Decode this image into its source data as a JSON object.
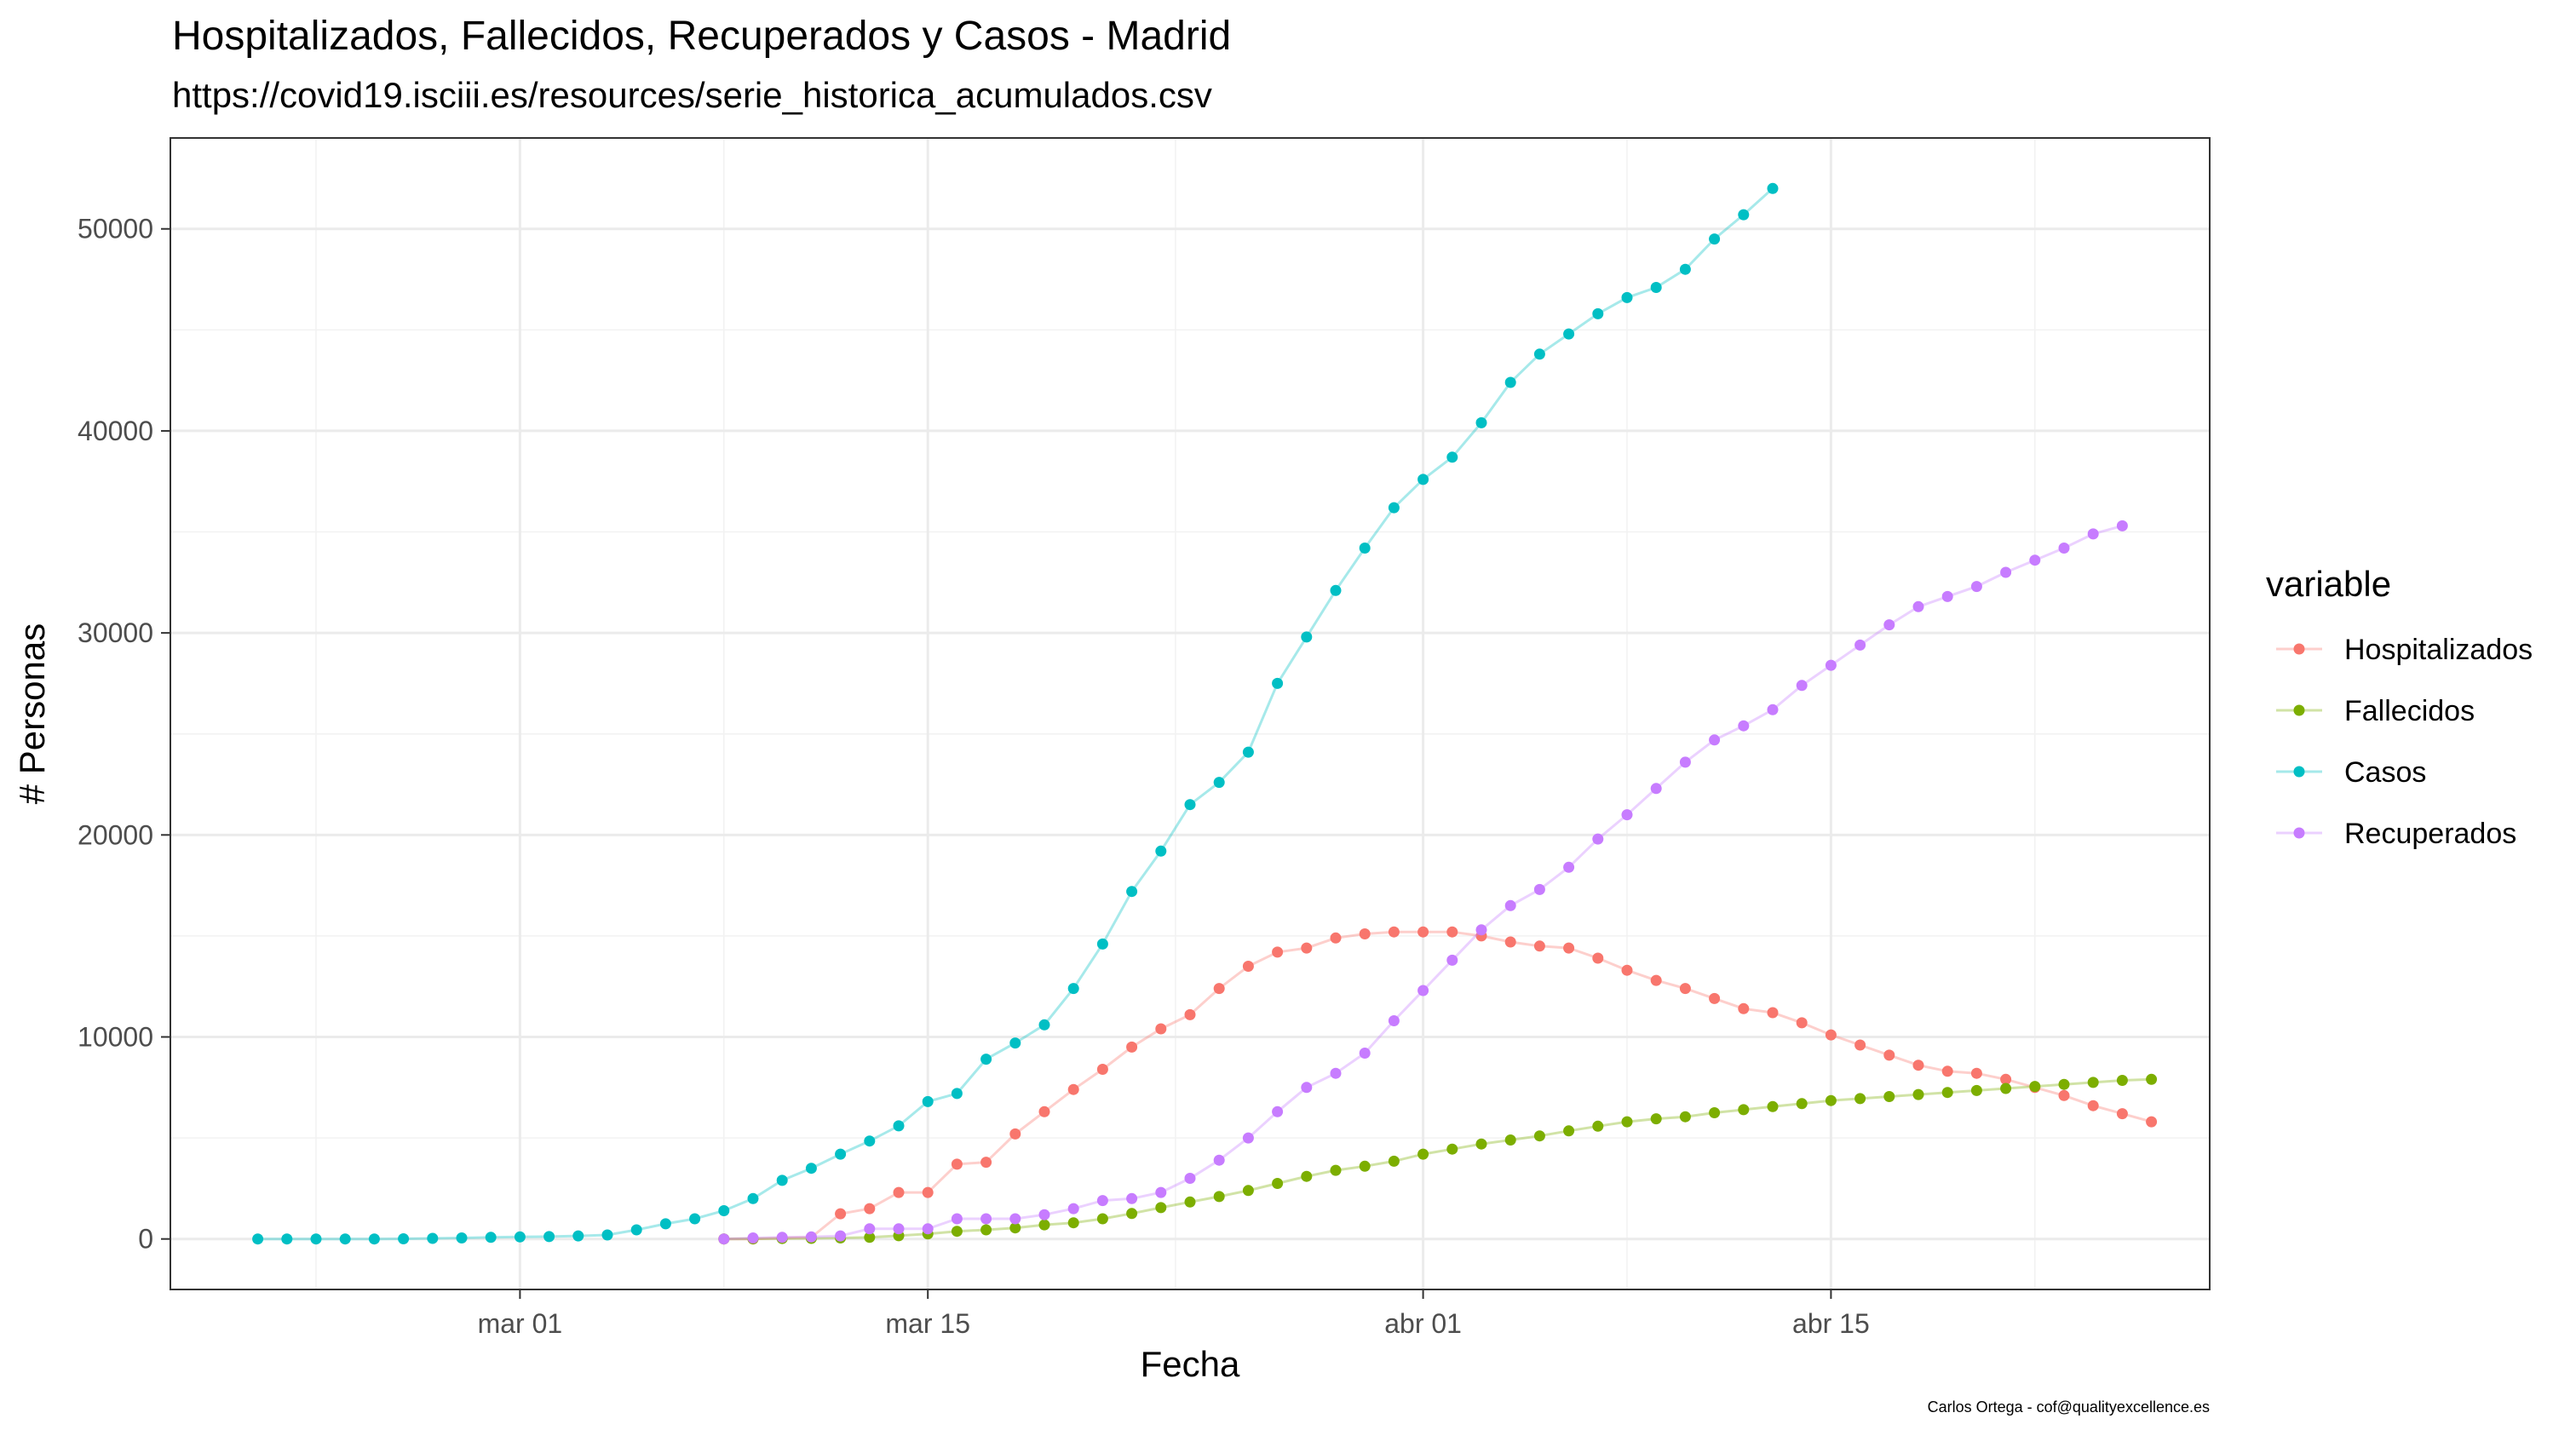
{
  "title": "Hospitalizados, Fallecidos, Recuperados y Casos - Madrid",
  "subtitle": "https://covid19.isciii.es/resources/serie_historica_acumulados.csv",
  "caption": "Carlos Ortega - cof@qualityexcellence.es",
  "chart_data": {
    "type": "line",
    "xlabel": "Fecha",
    "ylabel": "# Personas",
    "x_type": "date",
    "xlim": [
      "2020-02-18",
      "2020-04-28"
    ],
    "ylim": [
      -2500,
      54500
    ],
    "x_ticks": [
      {
        "date": "2020-03-01",
        "label": "mar 01"
      },
      {
        "date": "2020-03-15",
        "label": "mar 15"
      },
      {
        "date": "2020-04-01",
        "label": "abr 01"
      },
      {
        "date": "2020-04-15",
        "label": "abr 15"
      }
    ],
    "y_ticks": [
      0,
      10000,
      20000,
      30000,
      40000,
      50000
    ],
    "y_tick_labels": [
      "0",
      "10000",
      "20000",
      "30000",
      "40000",
      "50000"
    ],
    "grid": true,
    "legend": {
      "title": "variable",
      "position": "right",
      "entries": [
        "Hospitalizados",
        "Fallecidos",
        "Casos",
        "Recuperados"
      ]
    },
    "series": [
      {
        "name": "Hospitalizados",
        "color": "#F8766D",
        "start": "2020-03-08",
        "values": [
          0,
          0,
          50,
          80,
          1250,
          1500,
          2300,
          2300,
          3700,
          3800,
          5200,
          6300,
          7400,
          8400,
          9500,
          10400,
          11100,
          12400,
          13500,
          14200,
          14400,
          14900,
          15100,
          15200,
          15200,
          15200,
          15000,
          14700,
          14500,
          14400,
          13900,
          13300,
          12800,
          12400,
          11900,
          11400,
          11200,
          10700,
          10100,
          9600,
          9100,
          8600,
          8300,
          8200,
          7900,
          7500,
          7100,
          6600,
          6200,
          5800
        ]
      },
      {
        "name": "Fallecidos",
        "color": "#7CAE00",
        "start": "2020-03-08",
        "values": [
          0,
          10,
          20,
          30,
          50,
          80,
          160,
          250,
          380,
          450,
          550,
          700,
          800,
          1000,
          1260,
          1550,
          1830,
          2100,
          2400,
          2750,
          3100,
          3400,
          3600,
          3850,
          4200,
          4450,
          4700,
          4900,
          5100,
          5350,
          5580,
          5800,
          5950,
          6050,
          6250,
          6400,
          6550,
          6700,
          6850,
          6950,
          7050,
          7150,
          7250,
          7350,
          7450,
          7550,
          7650,
          7750,
          7850,
          7900
        ]
      },
      {
        "name": "Casos",
        "color": "#00BFC4",
        "start": "2020-02-21",
        "values": [
          0,
          0,
          0,
          0,
          0,
          10,
          30,
          50,
          80,
          100,
          120,
          150,
          200,
          450,
          750,
          1000,
          1400,
          2000,
          2900,
          3500,
          4200,
          4850,
          5600,
          6800,
          7200,
          8900,
          9700,
          10600,
          12400,
          14600,
          17200,
          19200,
          21500,
          22600,
          24100,
          27500,
          29800,
          32100,
          34200,
          36200,
          37600,
          38700,
          40400,
          42400,
          43800,
          44800,
          45800,
          46600,
          47100,
          48000,
          49500,
          50700,
          52000
        ]
      },
      {
        "name": "Recuperados",
        "color": "#C77CFF",
        "start": "2020-03-08",
        "values": [
          0,
          50,
          80,
          100,
          150,
          500,
          500,
          500,
          1000,
          1000,
          1000,
          1200,
          1500,
          1900,
          2000,
          2300,
          3000,
          3900,
          5000,
          6300,
          7500,
          8200,
          9200,
          10800,
          12300,
          13800,
          15300,
          16500,
          17300,
          18400,
          19800,
          21000,
          22300,
          23600,
          24700,
          25400,
          26200,
          27400,
          28400,
          29400,
          30400,
          31300,
          31800,
          32300,
          33000,
          33600,
          34200,
          34900,
          35300
        ]
      }
    ]
  }
}
